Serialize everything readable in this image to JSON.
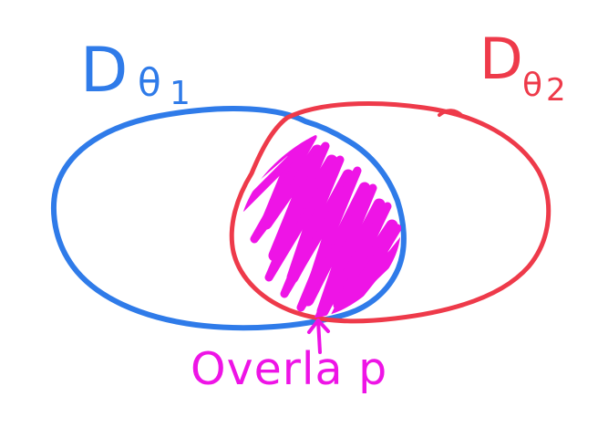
{
  "colors": {
    "set1": "#2f7be9",
    "set2": "#ee3a4a",
    "overlap": "#ee14e6",
    "background": "#ffffff"
  },
  "labels": {
    "set1": {
      "main": "D",
      "sub": "θ",
      "index": "1"
    },
    "set2": {
      "main": "D",
      "sub": "θ",
      "index": "2"
    },
    "overlap": "Overla p"
  },
  "icons": {
    "pointer": "up-arrow-icon"
  }
}
